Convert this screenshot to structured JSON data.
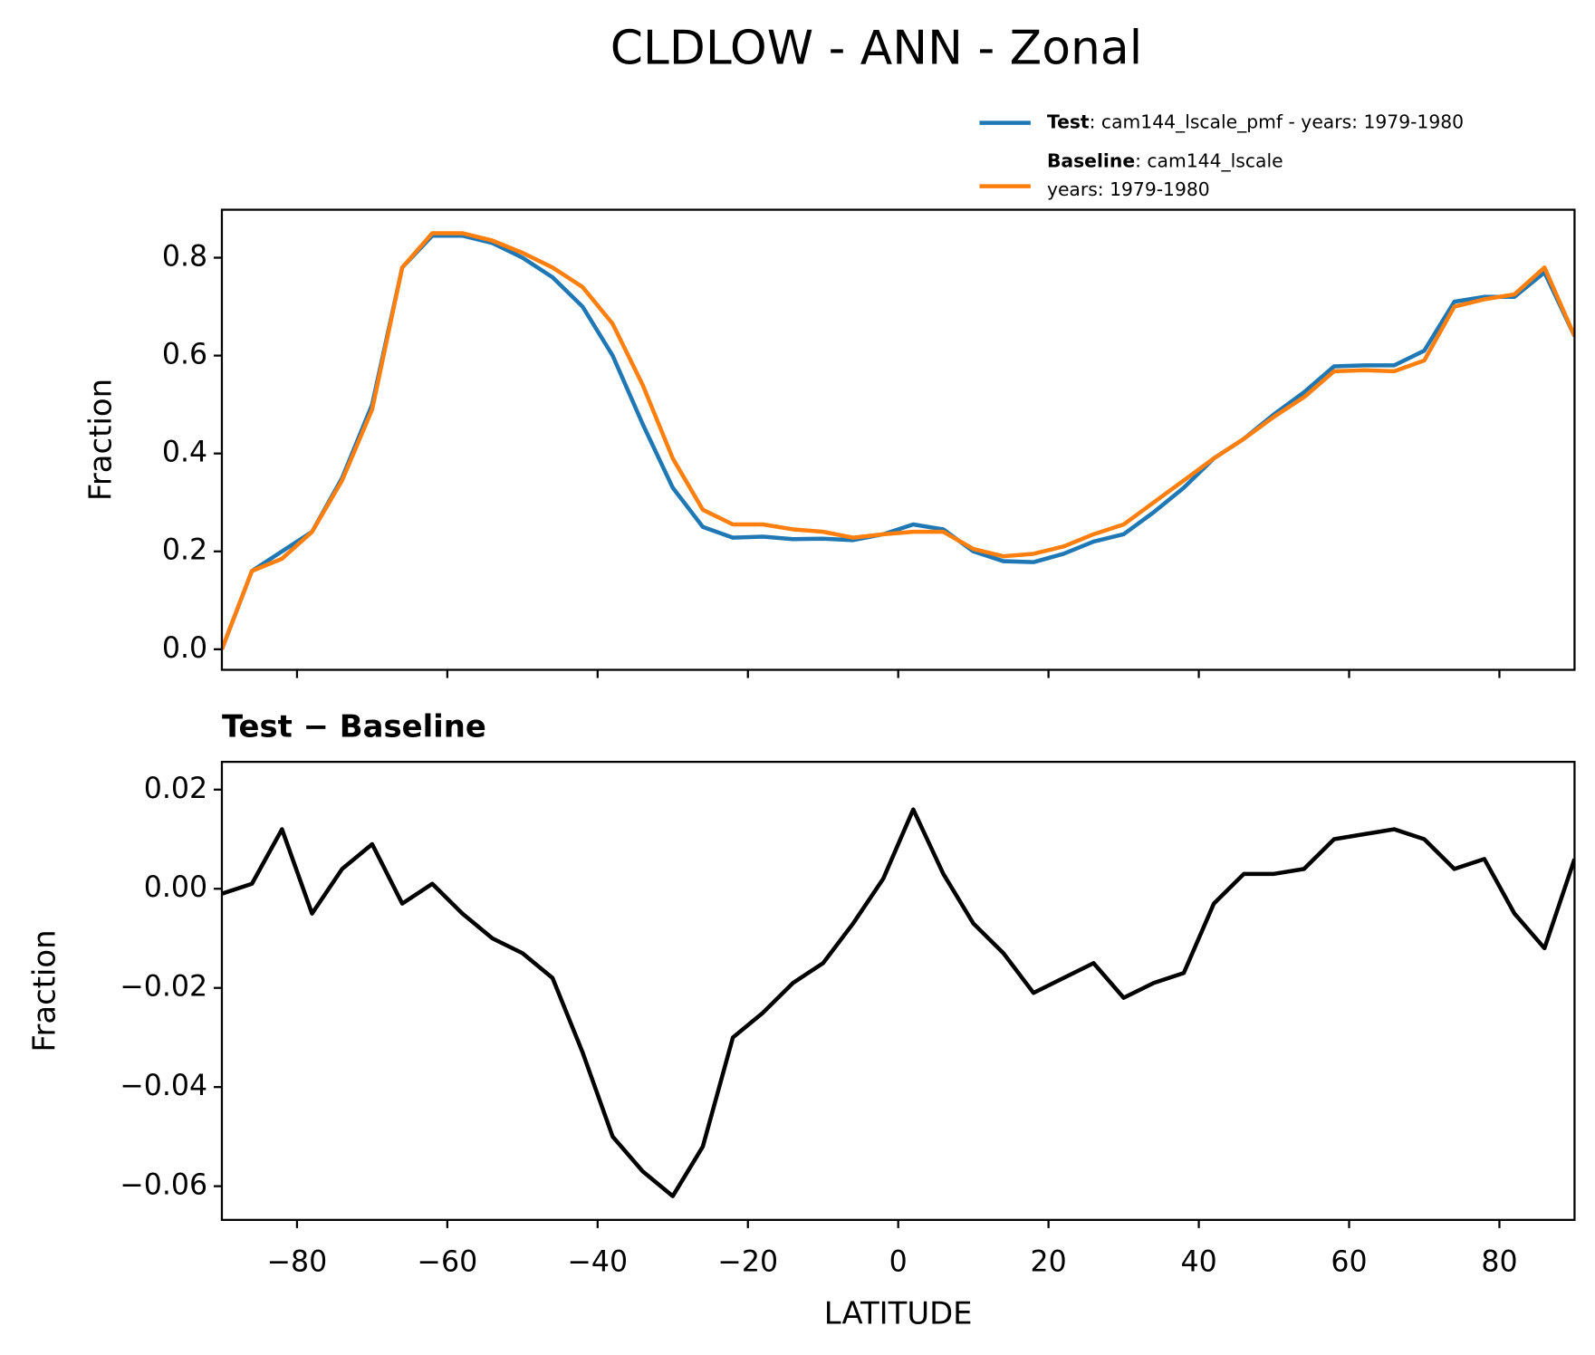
{
  "title": "CLDLOW - ANN - Zonal",
  "chart_data": [
    {
      "type": "line",
      "ylabel": "Fraction",
      "x": [
        -90,
        -86,
        -82,
        -78,
        -74,
        -70,
        -66,
        -62,
        -58,
        -54,
        -50,
        -46,
        -42,
        -38,
        -34,
        -30,
        -26,
        -22,
        -18,
        -14,
        -10,
        -6,
        -2,
        2,
        6,
        10,
        14,
        18,
        22,
        26,
        30,
        34,
        38,
        42,
        46,
        50,
        54,
        58,
        62,
        66,
        70,
        74,
        78,
        82,
        86,
        90
      ],
      "series": [
        {
          "name": "Test",
          "color": "#1f77b4",
          "legend_lines": [
            ": cam144_lscale_pmf - years: 1979-1980"
          ],
          "values": [
            0.0,
            0.16,
            0.2,
            0.24,
            0.35,
            0.5,
            0.78,
            0.845,
            0.845,
            0.83,
            0.8,
            0.76,
            0.7,
            0.6,
            0.46,
            0.33,
            0.25,
            0.228,
            0.23,
            0.225,
            0.226,
            0.223,
            0.235,
            0.255,
            0.245,
            0.2,
            0.18,
            0.178,
            0.195,
            0.22,
            0.235,
            0.28,
            0.33,
            0.39,
            0.43,
            0.48,
            0.525,
            0.578,
            0.58,
            0.58,
            0.61,
            0.71,
            0.72,
            0.72,
            0.77,
            0.64
          ]
        },
        {
          "name": "Baseline",
          "color": "#ff7f0e",
          "legend_lines": [
            ": cam144_lscale",
            "years: 1979-1980"
          ],
          "values": [
            0.0,
            0.16,
            0.185,
            0.24,
            0.345,
            0.49,
            0.78,
            0.85,
            0.85,
            0.835,
            0.81,
            0.78,
            0.74,
            0.665,
            0.54,
            0.39,
            0.285,
            0.255,
            0.255,
            0.245,
            0.24,
            0.228,
            0.235,
            0.24,
            0.24,
            0.205,
            0.19,
            0.195,
            0.21,
            0.235,
            0.255,
            0.3,
            0.345,
            0.39,
            0.43,
            0.475,
            0.515,
            0.568,
            0.57,
            0.568,
            0.59,
            0.7,
            0.715,
            0.725,
            0.78,
            0.64
          ]
        }
      ],
      "xlim": [
        -90,
        90
      ],
      "xticks": [
        -80,
        -60,
        -40,
        -20,
        0,
        20,
        40,
        60,
        80
      ],
      "ylim": [
        -0.042,
        0.898
      ],
      "yticks": [
        {
          "value": 0,
          "label": "0.0"
        },
        0.2,
        0.4,
        0.6,
        0.8
      ],
      "grid": false,
      "legend": "upper right"
    },
    {
      "type": "line",
      "title": "Test − Baseline",
      "xlabel": "LATITUDE",
      "ylabel": "Fraction",
      "x": [
        -90,
        -86,
        -82,
        -78,
        -74,
        -70,
        -66,
        -62,
        -58,
        -54,
        -50,
        -46,
        -42,
        -38,
        -34,
        -30,
        -26,
        -22,
        -18,
        -14,
        -10,
        -6,
        -2,
        2,
        6,
        10,
        14,
        18,
        22,
        26,
        30,
        34,
        38,
        42,
        46,
        50,
        54,
        58,
        62,
        66,
        70,
        74,
        78,
        82,
        86,
        90
      ],
      "series": [
        {
          "color": "#000000",
          "values": [
            -0.001,
            0.001,
            0.012,
            -0.005,
            0.004,
            0.009,
            -0.003,
            0.001,
            -0.005,
            -0.01,
            -0.013,
            -0.018,
            -0.033,
            -0.05,
            -0.057,
            -0.062,
            -0.052,
            -0.03,
            -0.025,
            -0.019,
            -0.015,
            -0.007,
            0.002,
            0.016,
            0.003,
            -0.007,
            -0.013,
            -0.021,
            -0.018,
            -0.015,
            -0.022,
            -0.019,
            -0.017,
            -0.003,
            0.003,
            0.003,
            0.004,
            0.01,
            0.011,
            0.012,
            0.01,
            0.004,
            0.006,
            -0.005,
            -0.012,
            0.006
          ]
        }
      ],
      "xlim": [
        -90,
        90
      ],
      "xticks": [
        {
          "value": -80,
          "label": "−80"
        },
        {
          "value": -60,
          "label": "−60"
        },
        {
          "value": -40,
          "label": "−40"
        },
        {
          "value": -20,
          "label": "−20"
        },
        0,
        20,
        40,
        60,
        80
      ],
      "ylim": [
        -0.0668,
        0.0256
      ],
      "yticks": [
        {
          "value": -0.06,
          "label": "−0.06"
        },
        {
          "value": -0.04,
          "label": "−0.04"
        },
        {
          "value": -0.02,
          "label": "−0.02"
        },
        {
          "value": 0,
          "label": "0.00"
        },
        0.02
      ],
      "grid": false
    }
  ]
}
